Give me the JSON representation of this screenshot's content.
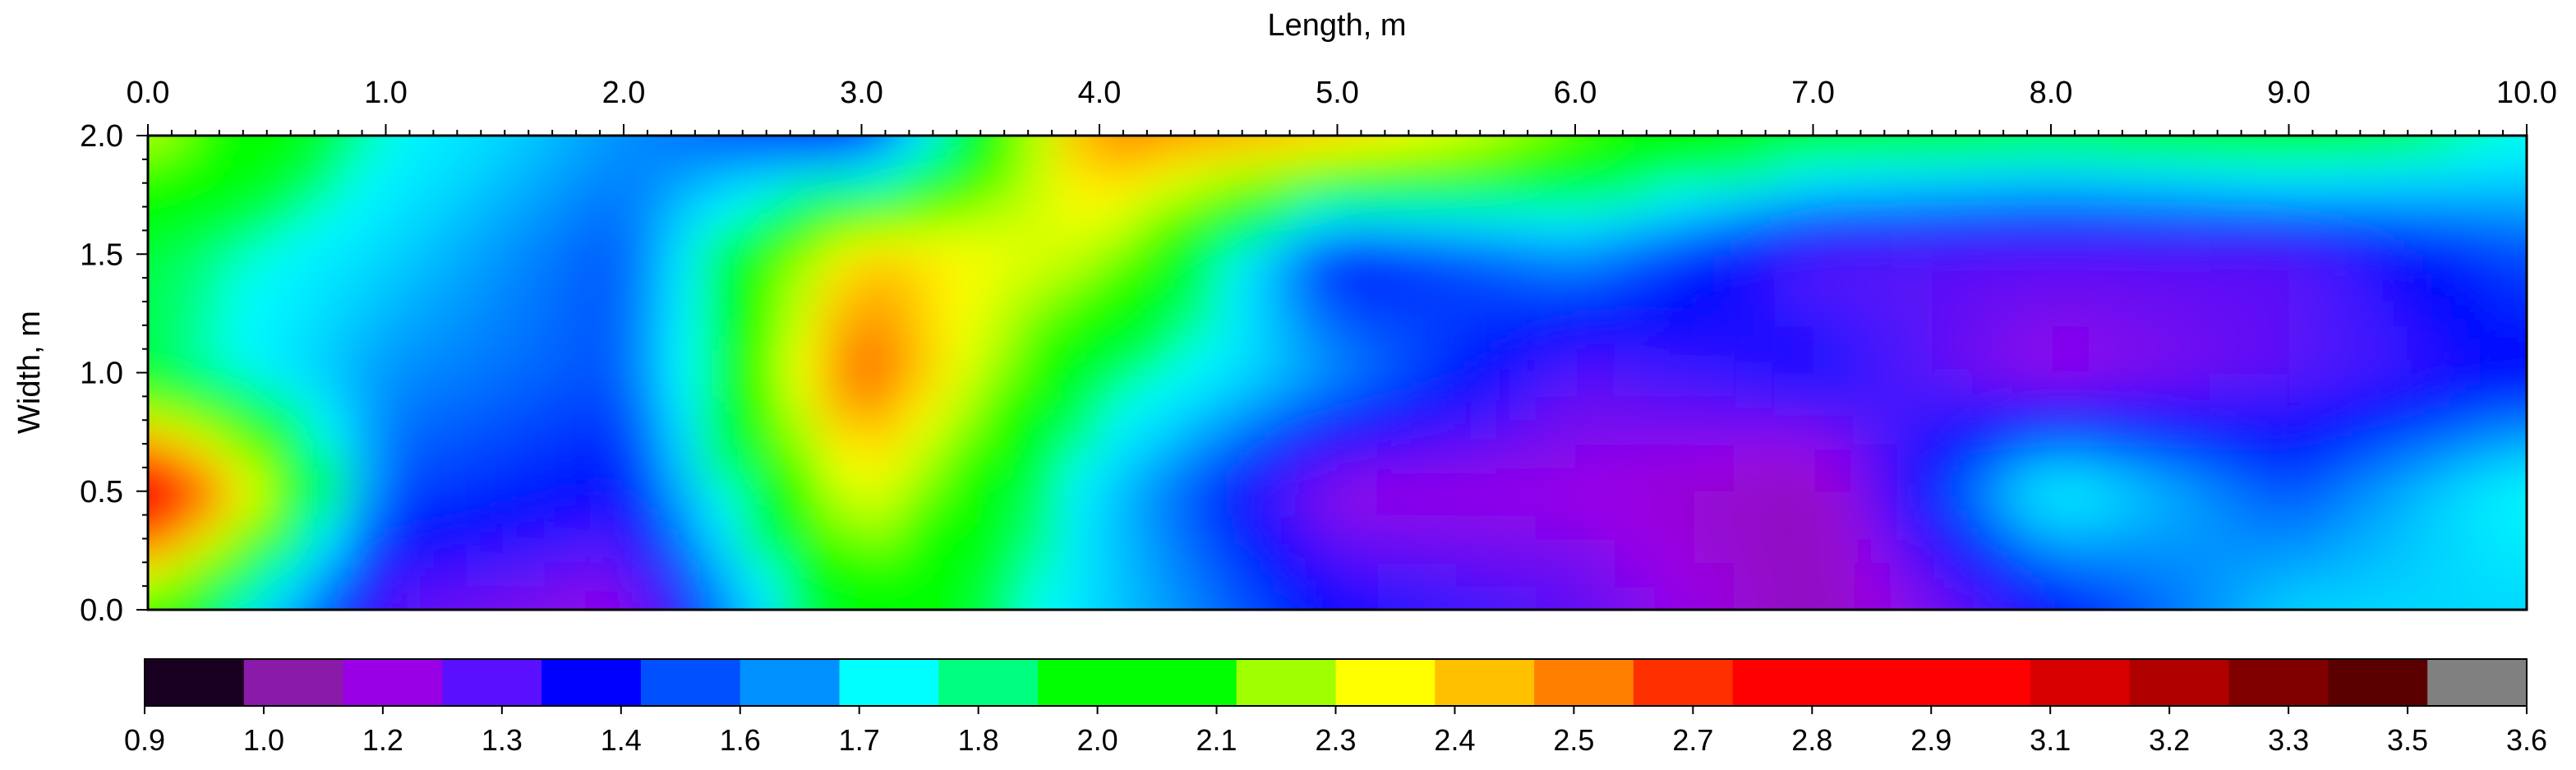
{
  "chart_data": {
    "type": "heatmap",
    "xlabel": "Length, m",
    "ylabel": "Width, m",
    "xlim": [
      0,
      10
    ],
    "ylim": [
      0,
      2
    ],
    "x_ticks": [
      "0.0",
      "1.0",
      "2.0",
      "3.0",
      "4.0",
      "5.0",
      "6.0",
      "7.0",
      "8.0",
      "9.0",
      "10.0"
    ],
    "y_ticks": [
      "0.0",
      "0.5",
      "1.0",
      "1.5",
      "2.0"
    ],
    "colorbar": {
      "labels": [
        "0.9",
        "1.0",
        "1.2",
        "1.3",
        "1.4",
        "1.6",
        "1.7",
        "1.8",
        "2.0",
        "2.1",
        "2.3",
        "2.4",
        "2.5",
        "2.7",
        "2.8",
        "2.9",
        "3.1",
        "3.2",
        "3.3",
        "3.5",
        "3.6"
      ],
      "bands": [
        "#1a0020",
        "#8a1aa8",
        "#9a00e6",
        "#5a10ff",
        "#0000ff",
        "#0050ff",
        "#0090ff",
        "#00ffff",
        "#00ff80",
        "#00ff00",
        "#00ff00",
        "#a0ff00",
        "#ffff00",
        "#ffc000",
        "#ff8000",
        "#ff3000",
        "#ff0000",
        "#ff0000",
        "#ff0000",
        "#d80000",
        "#b00000",
        "#800000",
        "#5a0000",
        "#808080"
      ]
    },
    "field": {
      "x_step": 1.0,
      "y_step": 0.5,
      "values": [
        [
          2.2,
          1.7,
          1.5,
          1.3,
          2.5,
          2.4,
          2.1,
          1.9,
          1.8,
          1.9,
          1.7
        ],
        [
          1.8,
          1.6,
          1.4,
          2.4,
          2.2,
          1.3,
          1.5,
          1.2,
          1.2,
          1.2,
          1.4
        ],
        [
          1.8,
          1.5,
          1.4,
          2.6,
          1.8,
          1.5,
          1.2,
          1.3,
          1.1,
          1.2,
          1.3
        ],
        [
          3.0,
          1.4,
          1.3,
          2.3,
          1.6,
          1.1,
          1.1,
          1.0,
          1.7,
          1.4,
          1.7
        ],
        [
          2.0,
          1.2,
          1.1,
          2.0,
          1.6,
          1.3,
          1.2,
          1.0,
          1.3,
          1.6,
          1.6
        ]
      ]
    }
  }
}
